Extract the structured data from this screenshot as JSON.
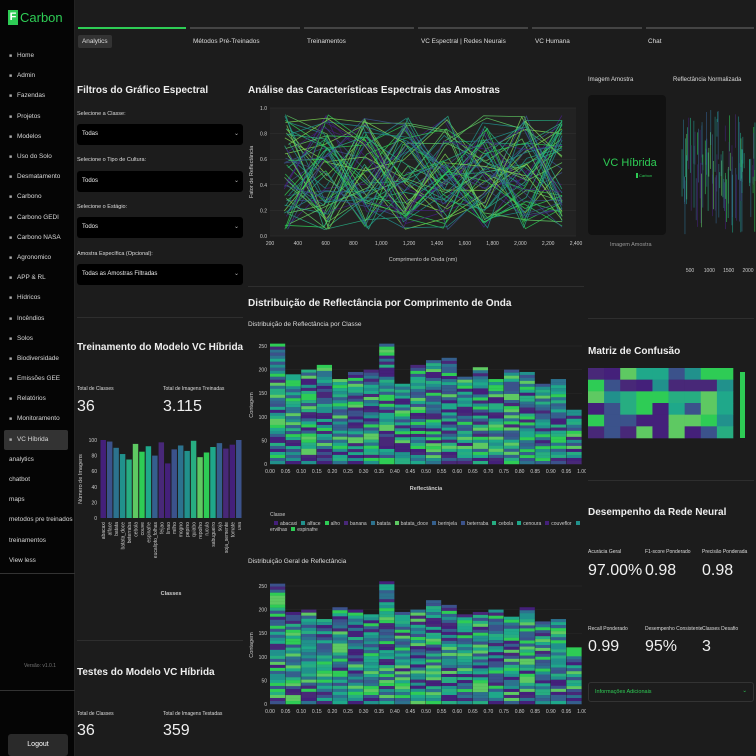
{
  "app": {
    "brand_letter": "F",
    "brand_name": "Carbon",
    "version": "Versão: v1.0.1",
    "logout": "Logout"
  },
  "sidebar": {
    "items": [
      {
        "label": "Home",
        "icon": "home-icon"
      },
      {
        "label": "Admin",
        "icon": "gear-icon"
      },
      {
        "label": "Fazendas",
        "icon": "farm-icon"
      },
      {
        "label": "Projetos",
        "icon": "clipboard-icon"
      },
      {
        "label": "Modelos",
        "icon": "model-icon"
      },
      {
        "label": "Uso do Solo",
        "icon": "soil-icon"
      },
      {
        "label": "Desmatamento",
        "icon": "tree-icon"
      },
      {
        "label": "Carbono",
        "icon": "carbon-icon"
      },
      {
        "label": "Carbono GEDI",
        "icon": "satellite-icon"
      },
      {
        "label": "Carbono NASA",
        "icon": "rocket-icon"
      },
      {
        "label": "Agronomico",
        "icon": "leaf-icon"
      },
      {
        "label": "APP & RL",
        "icon": "app-icon"
      },
      {
        "label": "Hídricos",
        "icon": "water-icon"
      },
      {
        "label": "Incêndios",
        "icon": "fire-icon"
      },
      {
        "label": "Solos",
        "icon": "layers-icon"
      },
      {
        "label": "Biodiversidade",
        "icon": "leaf-icon"
      },
      {
        "label": "Emissões GEE",
        "icon": "cloud-icon"
      },
      {
        "label": "Relatórios",
        "icon": "report-icon"
      },
      {
        "label": "Monitoramento",
        "icon": "monitor-icon"
      },
      {
        "label": "VC Híbrida",
        "icon": "check-icon"
      }
    ],
    "pages": [
      "analytics",
      "chatbot",
      "maps",
      "metodos pre treinados",
      "treinamentos",
      "View less"
    ]
  },
  "tabs": [
    "Analytics",
    "Métodos Pré-Treinados",
    "Treinamentos",
    "VC Espectral | Redes Neurais",
    "VC Humana",
    "Chat"
  ],
  "filters": {
    "title": "Filtros do Gráfico Espectral",
    "classe_label": "Selecione a Classe:",
    "classe_value": "Todas",
    "cultura_label": "Selecione o Tipo de Cultura:",
    "cultura_value": "Todos",
    "estagio_label": "Selecione o Estágio:",
    "estagio_value": "Todos",
    "amostra_label": "Amostra Específica (Opcional):",
    "amostra_value": "Todas as Amostras Filtradas"
  },
  "training": {
    "title": "Treinamento do Modelo VC Híbrida",
    "classes_label": "Total de Classes",
    "classes_value": "36",
    "images_label": "Total de Imagens Treinadas",
    "images_value": "3.115",
    "y_label": "Número de Imagens",
    "x_label": "Classes"
  },
  "testing": {
    "title": "Testes do Modelo VC Híbrida",
    "classes_label": "Total de Classes",
    "classes_value": "36",
    "images_label": "Total de Imagens Testadas",
    "images_value": "359"
  },
  "spectral": {
    "title": "Análise das Características Espectrais das Amostras",
    "x_label": "Comprimento de Onda (nm)",
    "y_label": "Fator de Reflectância"
  },
  "distribution": {
    "title": "Distribuição de Reflectância por Comprimento de Onda",
    "subtitle": "Distribuição de Reflectância por Classe",
    "x_label": "Reflectância",
    "y_label": "Contagem",
    "legend_title": "Classe",
    "general_title": "Distribuição Geral de Reflectância"
  },
  "sample": {
    "title": "Imagem Amostra",
    "logo_text": "VC Híbrida",
    "logo_sub": "Carbon",
    "caption": "Imagem Amostra",
    "norm_title": "Reflectância Normalizada"
  },
  "confusion": {
    "title": "Matriz de Confusão"
  },
  "performance": {
    "title": "Desempenho da Rede Neural",
    "acc_label": "Acurácia Geral",
    "acc_value": "97.00%",
    "f1_label": "F1-score Ponderado",
    "f1_value": "0.98",
    "prec_label": "Precisão Ponderada",
    "prec_value": "0.98",
    "recall_label": "Recall Ponderado",
    "recall_value": "0.99",
    "cons_label": "Desempenho Consistente",
    "cons_value": "95%",
    "hard_label": "Classes Desafio",
    "hard_value": "3",
    "expander": "Informações Adicionais"
  },
  "colors": {
    "accent": "#2ecc55",
    "bg": "#1c1c1c",
    "sidebar": "#050505"
  },
  "chart_data": [
    {
      "type": "bar",
      "id": "training-bars",
      "categories": [
        "abacaxi",
        "alface",
        "batata",
        "batata_doce",
        "beterraba",
        "cebola",
        "couve",
        "espinafre",
        "eucalipto_folhas",
        "feijao",
        "limao",
        "milho",
        "mogno",
        "pepino",
        "quiabo",
        "repolho",
        "rucula",
        "sabugueiro",
        "soja",
        "soja_semente",
        "tomate",
        "uva"
      ],
      "values": [
        100,
        98,
        90,
        82,
        75,
        95,
        85,
        92,
        80,
        97,
        70,
        88,
        93,
        86,
        99,
        78,
        84,
        91,
        96,
        89,
        94,
        100
      ],
      "ylim": [
        0,
        100
      ],
      "yticks": [
        0,
        20,
        40,
        60,
        80,
        100
      ]
    },
    {
      "type": "line",
      "id": "spectral-lines",
      "xticks": [
        200,
        400,
        600,
        800,
        1000,
        1200,
        1400,
        1600,
        1800,
        2000,
        2200,
        2400
      ],
      "xlim": [
        200,
        2400
      ],
      "ylim": [
        0,
        1
      ],
      "yticks": [
        0.0,
        0.2,
        0.4,
        0.6,
        0.8,
        1.0
      ],
      "note_series": "many overlapping sample spectra between 300 and 2300 nm"
    },
    {
      "type": "bar",
      "id": "class-hist",
      "x": [
        0.0,
        0.05,
        0.1,
        0.15,
        0.2,
        0.25,
        0.3,
        0.35,
        0.4,
        0.45,
        0.5,
        0.55,
        0.6,
        0.65,
        0.7,
        0.75,
        0.8,
        0.85,
        0.9,
        0.95
      ],
      "values": [
        255,
        190,
        200,
        210,
        180,
        195,
        200,
        255,
        170,
        210,
        220,
        225,
        185,
        205,
        180,
        200,
        195,
        170,
        180,
        115
      ],
      "ylim": [
        0,
        250
      ],
      "yticks": [
        0,
        50,
        100,
        150,
        200,
        250
      ],
      "xticks": [
        "0.00",
        "0.05",
        "0.10",
        "0.15",
        "0.20",
        "0.25",
        "0.30",
        "0.35",
        "0.40",
        "0.45",
        "0.50",
        "0.55",
        "0.60",
        "0.65",
        "0.70",
        "0.75",
        "0.80",
        "0.85",
        "0.90",
        "0.95",
        "1.00"
      ],
      "legend": [
        "abacaxi",
        "alface",
        "alho",
        "banana",
        "batata",
        "batata_doce",
        "berinjela",
        "beterraba",
        "cebola",
        "cenoura",
        "couveflor",
        "ervilhas",
        "espinafre"
      ]
    },
    {
      "type": "bar",
      "id": "general-hist",
      "x": [
        0.0,
        0.05,
        0.1,
        0.15,
        0.2,
        0.25,
        0.3,
        0.35,
        0.4,
        0.45,
        0.5,
        0.55,
        0.6,
        0.65,
        0.7,
        0.75,
        0.8,
        0.85,
        0.9,
        0.95
      ],
      "values": [
        255,
        195,
        200,
        180,
        205,
        200,
        190,
        260,
        195,
        200,
        220,
        210,
        190,
        195,
        200,
        185,
        205,
        175,
        180,
        120
      ],
      "ylim": [
        0,
        250
      ],
      "yticks": [
        0,
        50,
        100,
        150,
        200,
        250
      ],
      "xticks": [
        "0.00",
        "0.05",
        "0.10",
        "0.15",
        "0.20",
        "0.25",
        "0.30",
        "0.35",
        "0.40",
        "0.45",
        "0.50",
        "0.55",
        "0.60",
        "0.65",
        "0.70",
        "0.75",
        "0.80",
        "0.85",
        "0.90",
        "0.95",
        "1.00"
      ]
    },
    {
      "type": "line",
      "id": "norm-reflectance",
      "xticks": [
        500,
        1000,
        1500,
        2000
      ]
    },
    {
      "type": "heatmap",
      "id": "confusion-matrix"
    }
  ]
}
